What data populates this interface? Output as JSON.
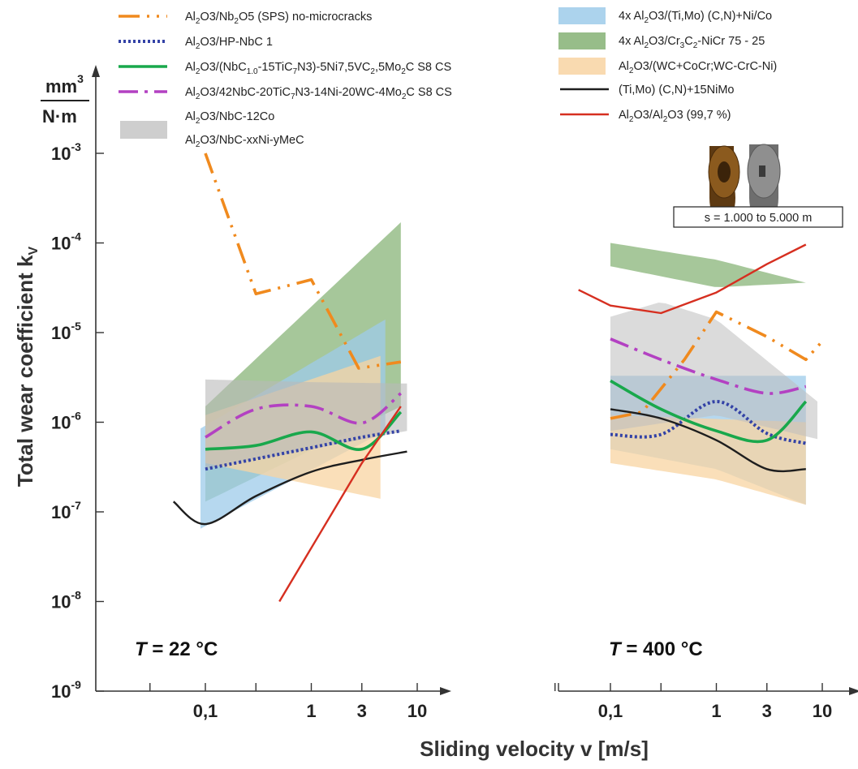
{
  "chart_data": {
    "type": "line",
    "ylabel": "Total wear coefficient k",
    "ylabel_sub": "V",
    "yunit": "mm³ / N·m",
    "xlabel": "Sliding velocity v [m/s]",
    "yscale": "log",
    "xscale": "log",
    "ylim": [
      1e-09,
      0.003
    ],
    "y_ticks": [
      {
        "value": 1e-09,
        "base": "10",
        "exp": "-9"
      },
      {
        "value": 1e-08,
        "base": "10",
        "exp": "-8"
      },
      {
        "value": 1e-07,
        "base": "10",
        "exp": "-7"
      },
      {
        "value": 1e-06,
        "base": "10",
        "exp": "-6"
      },
      {
        "value": 1e-05,
        "base": "10",
        "exp": "-5"
      },
      {
        "value": 0.0001,
        "base": "10",
        "exp": "-4"
      },
      {
        "value": 0.001,
        "base": "10",
        "exp": "-3"
      }
    ],
    "x_ticks": [
      {
        "value": 0.1,
        "label": "0,1"
      },
      {
        "value": 1,
        "label": "1"
      },
      {
        "value": 3,
        "label": "3"
      },
      {
        "value": 10,
        "label": "10"
      }
    ],
    "x_minor_ticks": [
      0.03,
      0.3
    ],
    "grid": false,
    "legend_left": [
      {
        "id": "nb2o5",
        "text": "Al2O3/Nb2O5 (SPS) no-microcracks"
      },
      {
        "id": "hpnbc",
        "text": "Al2O3/HP-NbC 1"
      },
      {
        "id": "nbc15",
        "text": "Al2O3/(NbC1.0-15TiC7N3)-5Ni7,5VC2,5Mo2C S8 CS"
      },
      {
        "id": "nbc42",
        "text": "Al2O3/42NbC-20TiC7N3-14Ni-20WC-4Mo2C S8 CS"
      },
      {
        "id": "nbcco",
        "text": "Al2O3/NbC-12Co"
      },
      {
        "id": "nbcxx",
        "text": "Al2O3/NbC-xxNi-yMeC"
      }
    ],
    "legend_right": [
      {
        "id": "timo",
        "text": "4x Al2O3/(Ti,Mo) (C,N)+Ni/Co"
      },
      {
        "id": "cr3c2",
        "text": "4x Al2O3/Cr3C2-NiCr 75 - 25"
      },
      {
        "id": "wc",
        "text": "Al2O3/(WC+CoCr;WC-CrC-Ni)"
      },
      {
        "id": "timoni",
        "text": "(Ti,Mo) (C,N)+15NiMo"
      },
      {
        "id": "alal",
        "text": "Al2O3/Al2O3 (99,7 %)"
      }
    ],
    "panels": [
      {
        "title": "T = 22 °C",
        "bands": [
          {
            "id": "cr3c2",
            "lower": [
              [
                0.1,
                1.3e-07
              ],
              [
                7,
                1.5e-06
              ]
            ],
            "upper": [
              [
                0.1,
                1.5e-06
              ],
              [
                7,
                0.00017
              ]
            ]
          },
          {
            "id": "timo",
            "lower": [
              [
                0.09,
                6.5e-08
              ],
              [
                5,
                8e-07
              ]
            ],
            "upper": [
              [
                0.09,
                8.5e-07
              ],
              [
                5,
                1.4e-05
              ]
            ]
          },
          {
            "id": "wc",
            "lower": [
              [
                0.1,
                3.5e-07
              ],
              [
                4.5,
                1.4e-07
              ]
            ],
            "upper": [
              [
                0.1,
                1.2e-06
              ],
              [
                4.5,
                5.5e-06
              ]
            ]
          },
          {
            "id": "nbcco",
            "lower": [
              [
                0.1,
                3e-07
              ],
              [
                1,
                5e-07
              ],
              [
                8,
                8e-07
              ]
            ],
            "upper": [
              [
                0.1,
                3e-06
              ],
              [
                1,
                2.8e-06
              ],
              [
                8,
                2.7e-06
              ]
            ]
          }
        ],
        "lines": [
          {
            "id": "nb2o5",
            "points": [
              [
                0.1,
                0.001
              ],
              [
                0.3,
                2.7e-05
              ],
              [
                1,
                3.9e-05
              ],
              [
                2.8,
                4e-06
              ],
              [
                7,
                4.7e-06
              ]
            ]
          },
          {
            "id": "hpnbc",
            "points": [
              [
                0.1,
                3e-07
              ],
              [
                0.5,
                4.4e-07
              ],
              [
                1,
                5.2e-07
              ],
              [
                3,
                6.8e-07
              ],
              [
                7,
                8e-07
              ]
            ]
          },
          {
            "id": "nbc15",
            "points": [
              [
                0.1,
                5e-07
              ],
              [
                0.3,
                5.5e-07
              ],
              [
                1,
                7.8e-07
              ],
              [
                3,
                5e-07
              ],
              [
                7,
                1.3e-06
              ]
            ]
          },
          {
            "id": "nbc42",
            "points": [
              [
                0.1,
                6.8e-07
              ],
              [
                0.3,
                1.4e-06
              ],
              [
                1,
                1.5e-06
              ],
              [
                3,
                9.8e-07
              ],
              [
                7,
                2.1e-06
              ]
            ]
          },
          {
            "id": "timoni",
            "points": [
              [
                0.05,
                1.3e-07
              ],
              [
                0.1,
                7.3e-08
              ],
              [
                0.3,
                1.5e-07
              ],
              [
                1,
                2.8e-07
              ],
              [
                3,
                3.8e-07
              ],
              [
                8,
                4.7e-07
              ]
            ]
          },
          {
            "id": "alal",
            "points": [
              [
                0.5,
                1e-08
              ],
              [
                3,
                3.5e-07
              ],
              [
                7,
                1.5e-06
              ]
            ]
          }
        ]
      },
      {
        "title": "T = 400 °C",
        "bands": [
          {
            "id": "cr3c2",
            "lower": [
              [
                0.1,
                5.5e-05
              ],
              [
                1,
                3.2e-05
              ],
              [
                7,
                3.6e-05
              ]
            ],
            "upper": [
              [
                0.1,
                0.0001
              ],
              [
                1,
                6.5e-05
              ],
              [
                7,
                3.6e-05
              ]
            ]
          },
          {
            "id": "timo",
            "lower": [
              [
                0.1,
                5e-07
              ],
              [
                1,
                3e-07
              ],
              [
                7,
                1.2e-07
              ]
            ],
            "upper": [
              [
                0.1,
                3.3e-06
              ],
              [
                7,
                3.3e-06
              ]
            ]
          },
          {
            "id": "wc",
            "lower": [
              [
                0.1,
                3.5e-07
              ],
              [
                1,
                2.3e-07
              ],
              [
                7,
                1.2e-07
              ]
            ],
            "upper": [
              [
                0.1,
                1.2e-06
              ],
              [
                7,
                1e-06
              ]
            ]
          },
          {
            "id": "nbcxx",
            "lower": [
              [
                0.1,
                8e-07
              ],
              [
                1,
                1.2e-06
              ],
              [
                9,
                6.5e-07
              ]
            ],
            "upper": [
              [
                0.1,
                1.5e-05
              ],
              [
                0.3,
                2.2e-05
              ],
              [
                1,
                1.4e-05
              ],
              [
                9,
                1.7e-06
              ]
            ]
          }
        ],
        "lines": [
          {
            "id": "nb2o5",
            "points": [
              [
                0.1,
                1.1e-06
              ],
              [
                0.2,
                1.3e-06
              ],
              [
                0.5,
                5e-06
              ],
              [
                1,
                1.7e-05
              ],
              [
                3,
                9e-06
              ],
              [
                7,
                5e-06
              ],
              [
                10,
                8e-06
              ]
            ]
          },
          {
            "id": "hpnbc",
            "points": [
              [
                0.1,
                7.3e-07
              ],
              [
                0.3,
                7.3e-07
              ],
              [
                1,
                1.7e-06
              ],
              [
                3,
                7.5e-07
              ],
              [
                7,
                5.8e-07
              ]
            ]
          },
          {
            "id": "nbc15",
            "points": [
              [
                0.1,
                2.9e-06
              ],
              [
                0.3,
                1.4e-06
              ],
              [
                1,
                8e-07
              ],
              [
                3,
                6.3e-07
              ],
              [
                7,
                1.7e-06
              ]
            ]
          },
          {
            "id": "nbc42",
            "points": [
              [
                0.1,
                8.5e-06
              ],
              [
                0.3,
                5e-06
              ],
              [
                1,
                3e-06
              ],
              [
                3,
                2.1e-06
              ],
              [
                7,
                2.5e-06
              ]
            ]
          },
          {
            "id": "timoni",
            "points": [
              [
                0.1,
                1.4e-06
              ],
              [
                0.3,
                1.1e-06
              ],
              [
                1,
                6.3e-07
              ],
              [
                3,
                3e-07
              ],
              [
                7,
                3e-07
              ]
            ]
          },
          {
            "id": "alal",
            "points": [
              [
                0.05,
                3e-05
              ],
              [
                0.1,
                2e-05
              ],
              [
                0.3,
                1.65e-05
              ],
              [
                1,
                2.8e-05
              ],
              [
                3,
                5.8e-05
              ],
              [
                7,
                9.6e-05
              ]
            ]
          }
        ]
      }
    ]
  },
  "series_styles": {
    "nb2o5": {
      "color": "#f08a1e",
      "dash": "26 9 3 9 3 9",
      "width": 3.6
    },
    "hpnbc": {
      "color": "#3342a6",
      "dash": "3 3",
      "width": 4
    },
    "nbc15": {
      "color": "#19a84c",
      "dash": "",
      "width": 3.6
    },
    "nbc42": {
      "color": "#b341c2",
      "dash": "24 8 4 8",
      "width": 3.6
    },
    "timoni": {
      "color": "#1e1e1e",
      "dash": "",
      "width": 2.4
    },
    "alal": {
      "color": "#d62f20",
      "dash": "",
      "width": 2.4
    }
  },
  "band_styles": {
    "timo": {
      "color": "#9ecbea",
      "opacity": 0.75
    },
    "cr3c2": {
      "color": "#6fa45c",
      "opacity": 0.62
    },
    "wc": {
      "color": "#f8d4a2",
      "opacity": 0.75
    },
    "nbcco": {
      "color": "#b9b9b9",
      "opacity": 0.6
    },
    "nbcxx": {
      "color": "#bdbdbd",
      "opacity": 0.55
    }
  },
  "inset": {
    "label": "s = 1.000 to 5.000 m",
    "colors": {
      "ring": "#8b5a1e",
      "disc": "#8f8f8f"
    }
  }
}
